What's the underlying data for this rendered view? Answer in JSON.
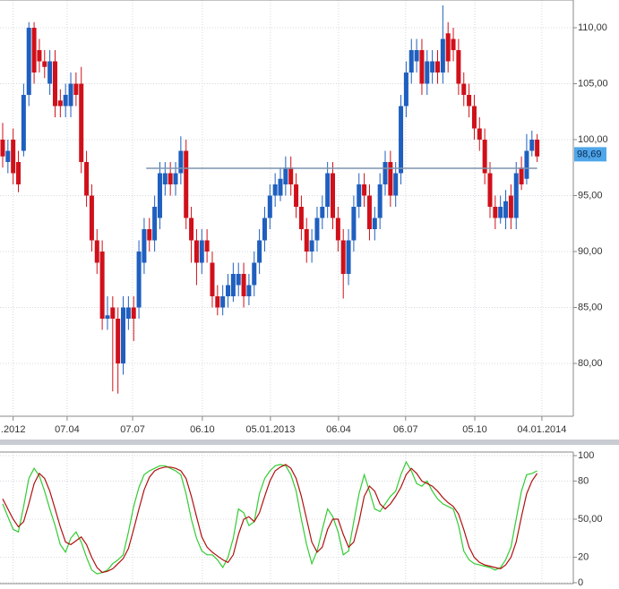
{
  "chart_data": [
    {
      "type": "candlestick",
      "up_color": "#1f5fbf",
      "down_color": "#d0101a",
      "grid": true,
      "xlim": [
        -0.51,
        108.9
      ],
      "ylim": [
        75.28,
        112.48
      ],
      "xticks": [
        {
          "value": 2,
          "label": ".2012"
        },
        {
          "value": 12.3,
          "label": "07.04"
        },
        {
          "value": 24.8,
          "label": "07.07"
        },
        {
          "value": 38.1,
          "label": "06.10"
        },
        {
          "value": 51.1,
          "label": "05.01.2013"
        },
        {
          "value": 64.1,
          "label": "06.04"
        },
        {
          "value": 76.9,
          "label": "06.07"
        },
        {
          "value": 90.1,
          "label": "05.10"
        },
        {
          "value": 102.9,
          "label": "04.01.2014"
        }
      ],
      "yticks": [
        {
          "value": 80,
          "label": "80,00"
        },
        {
          "value": 85,
          "label": "85,00"
        },
        {
          "value": 90,
          "label": "90,00"
        },
        {
          "value": 95,
          "label": "95,00"
        },
        {
          "value": 100,
          "label": "100,00"
        },
        {
          "value": 105,
          "label": "105,00"
        },
        {
          "value": 110,
          "label": "110,00"
        }
      ],
      "hline": {
        "value": 97.44,
        "from": 27.4,
        "color": "#7f93b0"
      },
      "marker": {
        "value": 98.69,
        "label": "98,69",
        "color": "#4fa6e8"
      },
      "open": [
        100,
        98,
        100,
        98,
        99,
        104,
        110,
        108,
        107,
        105,
        107,
        103.5,
        103,
        103,
        105,
        105,
        98,
        95,
        91,
        90,
        84,
        85,
        84,
        80,
        84,
        85,
        85,
        89,
        92,
        91,
        93,
        96,
        97,
        96,
        97,
        99,
        93,
        91,
        89,
        91,
        89,
        86,
        85,
        86,
        86,
        87,
        88,
        86,
        87,
        89,
        91,
        93,
        95,
        95,
        96,
        97.5,
        96,
        94,
        92,
        90,
        91,
        93,
        94,
        97,
        93,
        91,
        88,
        91,
        94,
        96,
        95,
        92,
        93,
        96,
        98,
        95,
        97,
        103,
        106,
        107,
        108,
        105,
        106,
        107,
        106,
        109.5,
        109,
        108,
        105,
        104,
        103,
        101,
        100,
        97,
        94,
        93,
        93,
        95,
        93,
        97.5,
        96.5,
        99,
        100
      ],
      "high": [
        101.5,
        100,
        101,
        99,
        105,
        110.5,
        110.5,
        109,
        108,
        108,
        108,
        104.5,
        105,
        106,
        106,
        106.5,
        99,
        96,
        92,
        91,
        86,
        86,
        85,
        86,
        86,
        86,
        91,
        93,
        93,
        95,
        98,
        98,
        98,
        98,
        100.3,
        100,
        94,
        92,
        92,
        92,
        90,
        87,
        87,
        88,
        89,
        89,
        89,
        88,
        90,
        92,
        94,
        96,
        97,
        97.5,
        98.5,
        98.5,
        97,
        95,
        93,
        92,
        94,
        95,
        98,
        98,
        94,
        92,
        92,
        95,
        97,
        97,
        96,
        94,
        97,
        99,
        99,
        98,
        104,
        107,
        109,
        109,
        109,
        108,
        108,
        108,
        112,
        110.5,
        110,
        109,
        106,
        105,
        104,
        102,
        101,
        98,
        95,
        95,
        95.5,
        96,
        98,
        98.5,
        100.5,
        100.8,
        100.5
      ],
      "low": [
        97.5,
        97,
        96,
        95.3,
        98.5,
        103,
        105,
        106,
        105.5,
        104,
        102,
        102,
        102,
        102,
        103,
        97,
        94,
        90,
        88,
        83,
        83,
        77.5,
        77.3,
        79,
        83,
        82,
        84,
        88,
        90,
        90,
        92,
        95,
        95,
        95,
        96,
        92,
        89,
        87,
        88,
        89,
        85,
        84.3,
        84.3,
        85,
        85.5,
        86,
        85,
        85.2,
        86,
        88,
        90,
        92,
        94,
        94.5,
        95,
        95,
        93,
        91,
        89,
        89,
        90,
        92,
        93,
        92,
        90,
        85.8,
        87,
        90,
        93,
        94,
        91,
        91,
        92,
        95,
        94,
        94,
        96,
        102,
        105,
        106,
        104,
        104,
        105,
        105,
        105,
        106,
        107,
        104,
        103,
        102,
        100,
        99,
        96,
        93,
        92,
        92.5,
        92,
        92,
        92,
        95.5,
        96,
        98.5,
        98
      ],
      "close": [
        98.5,
        99,
        97,
        96,
        104,
        110,
        106,
        107,
        106.5,
        107,
        103,
        103,
        104,
        105,
        104,
        98,
        95,
        91,
        89,
        84,
        84.3,
        84,
        80,
        85,
        85,
        84,
        90,
        92,
        91,
        94,
        97,
        97,
        96,
        97,
        99,
        93,
        91,
        89,
        91,
        90,
        86,
        85,
        86,
        87,
        88,
        88,
        86,
        87,
        89,
        91,
        93,
        95,
        96,
        96.5,
        97.5,
        96,
        94,
        92,
        90,
        91,
        93,
        94,
        97,
        93,
        91,
        88,
        91,
        94,
        96,
        95,
        92,
        93,
        96,
        98,
        95,
        97,
        103,
        106,
        108,
        108,
        105,
        107,
        107,
        106,
        109,
        107,
        108,
        105,
        104,
        103,
        101,
        100,
        97,
        94,
        93,
        94,
        94.5,
        93,
        97,
        96,
        99,
        100,
        98.5
      ]
    },
    {
      "type": "line",
      "grid": true,
      "xlim": [
        -0.51,
        108.9
      ],
      "ylim": [
        -0.7,
        102.8
      ],
      "yticks": [
        0,
        20,
        {
          "value": 50,
          "label": "50,00"
        },
        80,
        100
      ],
      "series": [
        {
          "color": "#33cc33",
          "values": [
            62,
            52,
            42,
            40,
            60,
            82,
            90,
            84,
            72,
            58,
            45,
            30,
            24,
            35,
            40,
            32,
            20,
            10,
            7,
            8,
            10,
            15,
            18,
            22,
            40,
            60,
            75,
            85,
            88,
            90,
            92,
            92,
            90,
            88,
            85,
            70,
            50,
            35,
            25,
            22,
            22,
            18,
            12,
            20,
            35,
            58,
            55,
            45,
            48,
            70,
            82,
            88,
            92,
            93,
            92,
            85,
            72,
            50,
            30,
            15,
            25,
            42,
            58,
            52,
            40,
            22,
            25,
            48,
            70,
            85,
            72,
            58,
            56,
            62,
            68,
            72,
            85,
            95,
            88,
            78,
            76,
            80,
            72,
            66,
            62,
            60,
            58,
            45,
            25,
            18,
            15,
            14,
            13,
            12,
            10,
            12,
            18,
            28,
            50,
            72,
            85,
            86,
            88
          ]
        },
        {
          "color": "#b01010",
          "values": [
            66,
            58,
            50,
            44,
            48,
            62,
            78,
            86,
            82,
            72,
            58,
            44,
            32,
            30,
            33,
            36,
            30,
            20,
            12,
            8,
            9,
            11,
            15,
            19,
            27,
            42,
            58,
            73,
            83,
            88,
            90,
            91,
            91,
            90,
            88,
            82,
            68,
            52,
            36,
            28,
            24,
            21,
            18,
            16,
            22,
            38,
            50,
            52,
            48,
            55,
            68,
            80,
            88,
            91,
            93,
            90,
            82,
            68,
            50,
            32,
            24,
            28,
            42,
            50,
            50,
            38,
            28,
            32,
            48,
            68,
            76,
            72,
            62,
            58,
            62,
            68,
            75,
            85,
            90,
            86,
            80,
            78,
            76,
            72,
            67,
            63,
            60,
            54,
            42,
            28,
            20,
            16,
            14,
            13,
            12,
            11,
            14,
            20,
            32,
            52,
            70,
            80,
            86
          ]
        }
      ]
    }
  ]
}
